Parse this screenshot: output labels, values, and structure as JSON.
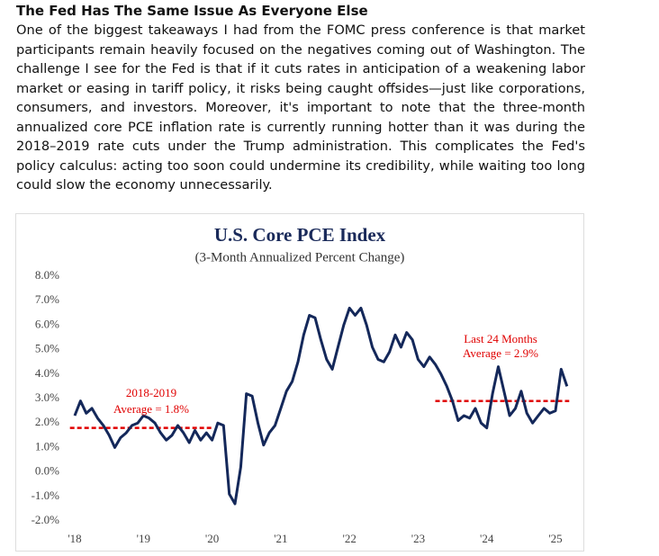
{
  "article": {
    "title": "The Fed Has The Same Issue As Everyone Else",
    "body": "One of the biggest takeaways I had from the FOMC press conference is that market participants remain heavily focused on the negatives coming out of Washington. The challenge I see for the Fed is that if it cuts rates in anticipation of a weakening labor market or easing in tariff policy, it risks being caught offsides—just like corporations, consumers, and investors. Moreover, it's important to note that the three-month annualized core PCE inflation rate is currently running hotter than it was during the 2018–2019 rate cuts under the Trump administration. This complicates the Fed's policy calculus: acting too soon could undermine its credibility, while waiting too long could slow the economy unnecessarily."
  },
  "chart_data": {
    "type": "line",
    "title": "U.S. Core PCE Index",
    "subtitle": "(3-Month Annualized Percent Change)",
    "color": "#14285a",
    "x": [
      2018.0,
      2018.083,
      2018.167,
      2018.25,
      2018.333,
      2018.417,
      2018.5,
      2018.583,
      2018.667,
      2018.75,
      2018.833,
      2018.917,
      2019.0,
      2019.083,
      2019.167,
      2019.25,
      2019.333,
      2019.417,
      2019.5,
      2019.583,
      2019.667,
      2019.75,
      2019.833,
      2019.917,
      2020.0,
      2020.083,
      2020.167,
      2020.25,
      2020.333,
      2020.417,
      2020.5,
      2020.583,
      2020.667,
      2020.75,
      2020.833,
      2020.917,
      2021.0,
      2021.083,
      2021.167,
      2021.25,
      2021.333,
      2021.417,
      2021.5,
      2021.583,
      2021.667,
      2021.75,
      2021.833,
      2021.917,
      2022.0,
      2022.083,
      2022.167,
      2022.25,
      2022.333,
      2022.417,
      2022.5,
      2022.583,
      2022.667,
      2022.75,
      2022.833,
      2022.917,
      2023.0,
      2023.083,
      2023.167,
      2023.25,
      2023.333,
      2023.417,
      2023.5,
      2023.583,
      2023.667,
      2023.75,
      2023.833,
      2023.917,
      2024.0,
      2024.083,
      2024.167,
      2024.25,
      2024.333,
      2024.417,
      2024.5,
      2024.583,
      2024.667,
      2024.75,
      2024.833,
      2024.917,
      2025.0,
      2025.083,
      2025.167
    ],
    "values": [
      2.3,
      2.9,
      2.4,
      2.6,
      2.2,
      1.9,
      1.5,
      1.0,
      1.4,
      1.6,
      1.9,
      2.0,
      2.3,
      2.2,
      2.0,
      1.6,
      1.3,
      1.5,
      1.9,
      1.6,
      1.2,
      1.7,
      1.3,
      1.6,
      1.3,
      2.0,
      1.9,
      -0.9,
      -1.3,
      0.2,
      3.2,
      3.1,
      2.0,
      1.1,
      1.6,
      1.9,
      2.6,
      3.3,
      3.7,
      4.5,
      5.6,
      6.4,
      6.3,
      5.4,
      4.6,
      4.2,
      5.1,
      6.0,
      6.7,
      6.4,
      6.7,
      6.0,
      5.1,
      4.6,
      4.5,
      4.9,
      5.6,
      5.1,
      5.7,
      5.4,
      4.6,
      4.3,
      4.7,
      4.4,
      4.0,
      3.5,
      2.9,
      2.1,
      2.3,
      2.2,
      2.6,
      2.0,
      1.8,
      3.2,
      4.3,
      3.3,
      2.3,
      2.6,
      3.3,
      2.4,
      2.0,
      2.3,
      2.6,
      2.4,
      2.5,
      4.2,
      3.5
    ],
    "xlim": [
      2017.9,
      2025.3
    ],
    "xticks": [
      {
        "value": 2018,
        "label": "'18"
      },
      {
        "value": 2019,
        "label": "'19"
      },
      {
        "value": 2020,
        "label": "'20"
      },
      {
        "value": 2021,
        "label": "'21"
      },
      {
        "value": 2022,
        "label": "'22"
      },
      {
        "value": 2023,
        "label": "'23"
      },
      {
        "value": 2024,
        "label": "'24"
      },
      {
        "value": 2025,
        "label": "'25"
      }
    ],
    "ylim": [
      -2,
      8
    ],
    "yticks": [
      {
        "value": 8,
        "label": "8.0%"
      },
      {
        "value": 7,
        "label": "7.0%"
      },
      {
        "value": 6,
        "label": "6.0%"
      },
      {
        "value": 5,
        "label": "5.0%"
      },
      {
        "value": 4,
        "label": "4.0%"
      },
      {
        "value": 3,
        "label": "3.0%"
      },
      {
        "value": 2,
        "label": "2.0%"
      },
      {
        "value": 1,
        "label": "1.0%"
      },
      {
        "value": 0,
        "label": "0.0%"
      },
      {
        "value": -1,
        "label": "-1.0%"
      },
      {
        "value": -2,
        "label": "-2.0%"
      }
    ],
    "averages": [
      {
        "period": "2018-2019",
        "label": "Average = 1.8%",
        "value": 1.8,
        "start": 2017.93,
        "end": 2020.0,
        "color": "#e00000"
      },
      {
        "period": "Last 24 Months",
        "label": "Average = 2.9%",
        "value": 2.9,
        "start": 2023.25,
        "end": 2025.2,
        "color": "#e00000"
      }
    ]
  }
}
